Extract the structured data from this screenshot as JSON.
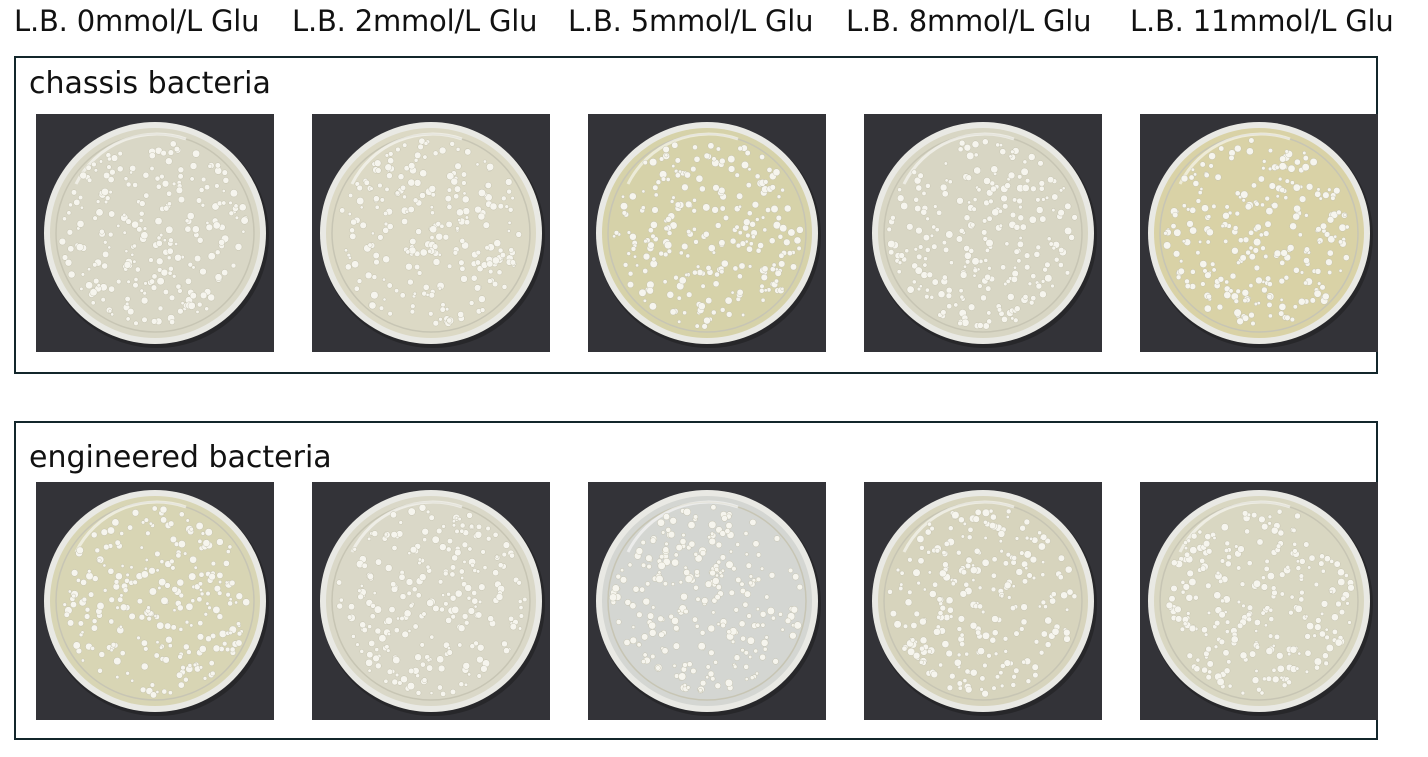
{
  "columns": [
    {
      "label": "L.B. 0mmol/L Glu"
    },
    {
      "label": "L.B. 2mmol/L Glu"
    },
    {
      "label": "L.B. 5mmol/L Glu"
    },
    {
      "label": "L.B. 8mmol/L Glu"
    },
    {
      "label": "L.B. 11mmol/L Glu"
    }
  ],
  "groups": [
    {
      "title": "chassis bacteria",
      "plates": [
        {
          "description": "petri dish photo",
          "agar_color": "#d9d7c6"
        },
        {
          "description": "petri dish photo",
          "agar_color": "#dcd9c5"
        },
        {
          "description": "petri dish photo",
          "agar_color": "#d6d2a9"
        },
        {
          "description": "petri dish photo",
          "agar_color": "#d8d6c4"
        },
        {
          "description": "petri dish photo",
          "agar_color": "#d9d2a6"
        }
      ]
    },
    {
      "title": "engineered bacteria",
      "plates": [
        {
          "description": "petri dish photo",
          "agar_color": "#d8d5b4"
        },
        {
          "description": "petri dish photo",
          "agar_color": "#dad8c8"
        },
        {
          "description": "petri dish photo",
          "agar_color": "#d4d6d2"
        },
        {
          "description": "petri dish photo",
          "agar_color": "#d7d4bd"
        },
        {
          "description": "petri dish photo",
          "agar_color": "#d9d7c2"
        }
      ]
    }
  ]
}
